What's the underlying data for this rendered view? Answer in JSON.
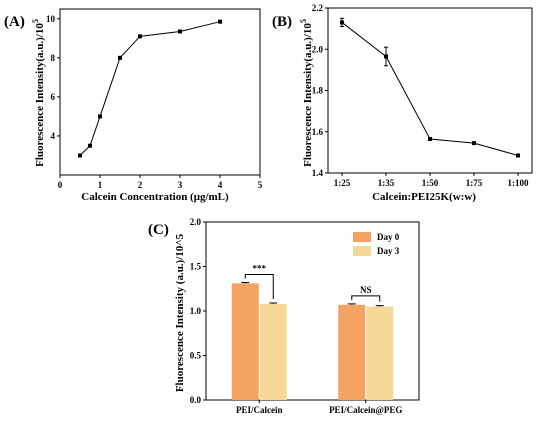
{
  "chart_data": [
    {
      "panel_label": "(A)",
      "type": "line",
      "xlabel": "Calcein Concentration (μg/mL)",
      "ylabel": "Fluorescence Intensity(a.u.)/10",
      "ylabel_exponent": "5",
      "xlim": [
        0,
        5
      ],
      "ylim": [
        2,
        10.5
      ],
      "xticks": [
        0,
        1,
        2,
        3,
        4,
        5
      ],
      "yticks": [
        4,
        6,
        8,
        10
      ],
      "x": [
        0.5,
        0.75,
        1.0,
        1.5,
        2.0,
        3.0,
        4.0
      ],
      "y": [
        3.0,
        3.5,
        5.0,
        8.0,
        9.1,
        9.35,
        9.85
      ],
      "marker": "square",
      "color": "#000000"
    },
    {
      "panel_label": "(B)",
      "type": "line",
      "xlabel": "Calcein:PEI25K(w:w)",
      "ylabel": "Fluorescence Intensity(a.u.)/10",
      "ylabel_exponent": "5",
      "categories": [
        "1:25",
        "1:35",
        "1:50",
        "1:75",
        "1:100"
      ],
      "ylim": [
        1.4,
        2.2
      ],
      "yticks": [
        1.4,
        1.6,
        1.8,
        2.0,
        2.2
      ],
      "values": [
        2.13,
        1.965,
        1.565,
        1.545,
        1.485
      ],
      "errors": [
        0.02,
        0.045,
        0.005,
        0.005,
        0.005
      ],
      "marker": "square",
      "color": "#000000"
    },
    {
      "panel_label": "(C)",
      "type": "bar",
      "xlabel": "",
      "ylabel": "Fluorescence Intensity (a.u.)/10^5",
      "categories": [
        "PEI/Calcein",
        "PEI/Calcein@PEG"
      ],
      "ylim": [
        0,
        2.0
      ],
      "yticks": [
        "0.0",
        "0.5",
        "1.0",
        "1.5",
        "2.0"
      ],
      "series": [
        {
          "name": "Day 0",
          "color": "#f4a460",
          "values": [
            1.31,
            1.07
          ],
          "errors": [
            0.01,
            0.01
          ]
        },
        {
          "name": "Day 3",
          "color": "#f5d898",
          "values": [
            1.08,
            1.05
          ],
          "errors": [
            0.01,
            0.01
          ]
        }
      ],
      "legend_position": "top-right",
      "significance": [
        "***",
        "NS"
      ]
    }
  ]
}
